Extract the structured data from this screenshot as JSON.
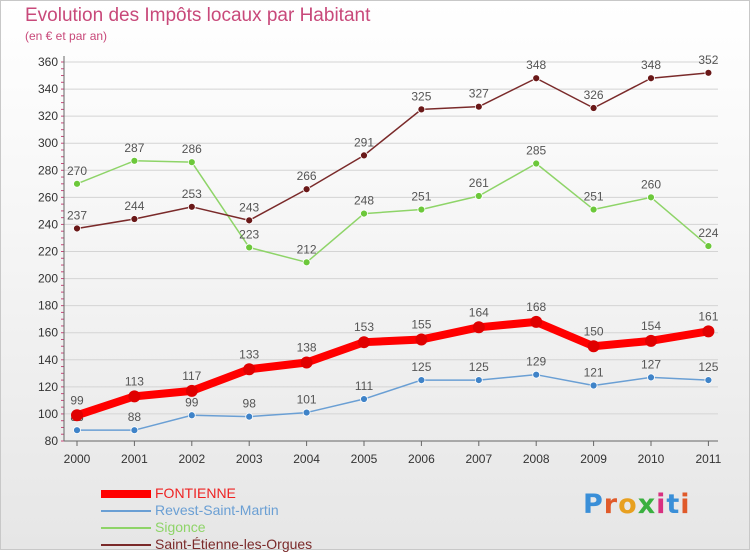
{
  "title": "Evolution des Impôts locaux par Habitant",
  "subtitle": "(en € et par an)",
  "logo": {
    "text": "Proxiti",
    "letter_colors": [
      "#3a8fd8",
      "#e05a2a",
      "#e8a020",
      "#3ab040",
      "#d83080",
      "#3a8fd8",
      "#e05a2a"
    ]
  },
  "colors": {
    "title": "#c8497a",
    "axis": "#666666",
    "grid": "#d4d4d4",
    "tick_mark": "#c8497a",
    "value_label": "#555555"
  },
  "chart_data": {
    "type": "line",
    "title": "Evolution des Impôts locaux par Habitant",
    "subtitle": "(en € et par an)",
    "x": [
      "2000",
      "2001",
      "2002",
      "2003",
      "2004",
      "2005",
      "2006",
      "2007",
      "2008",
      "2009",
      "2010",
      "2011"
    ],
    "ylim": [
      80,
      360
    ],
    "yticks": [
      80,
      100,
      120,
      140,
      160,
      180,
      200,
      220,
      240,
      260,
      280,
      300,
      320,
      340,
      360
    ],
    "grid": true,
    "legend_position": "bottom-left",
    "series": [
      {
        "name": "FONTIENNE",
        "color": "#ff0000",
        "marker_color": "#ee0000",
        "values": [
          99,
          113,
          117,
          133,
          138,
          153,
          155,
          164,
          168,
          150,
          154,
          161
        ],
        "label_position": "above",
        "emphasis": true
      },
      {
        "name": "Revest-Saint-Martin",
        "color": "#6a9fd4",
        "marker_color": "#3f83c8",
        "values": [
          88,
          88,
          99,
          98,
          101,
          111,
          125,
          125,
          129,
          121,
          127,
          125
        ],
        "label_position": "above",
        "emphasis": false
      },
      {
        "name": "Sigonce",
        "color": "#8ed468",
        "marker_color": "#6cc83a",
        "values": [
          270,
          287,
          286,
          223,
          212,
          248,
          251,
          261,
          285,
          251,
          260,
          224
        ],
        "label_position": "above",
        "emphasis": false
      },
      {
        "name": "Saint-Étienne-les-Orgues",
        "color": "#7a2a2a",
        "marker_color": "#6a1818",
        "values": [
          237,
          244,
          253,
          243,
          266,
          291,
          325,
          327,
          348,
          326,
          348,
          352
        ],
        "label_position": "above",
        "emphasis": false
      }
    ]
  }
}
